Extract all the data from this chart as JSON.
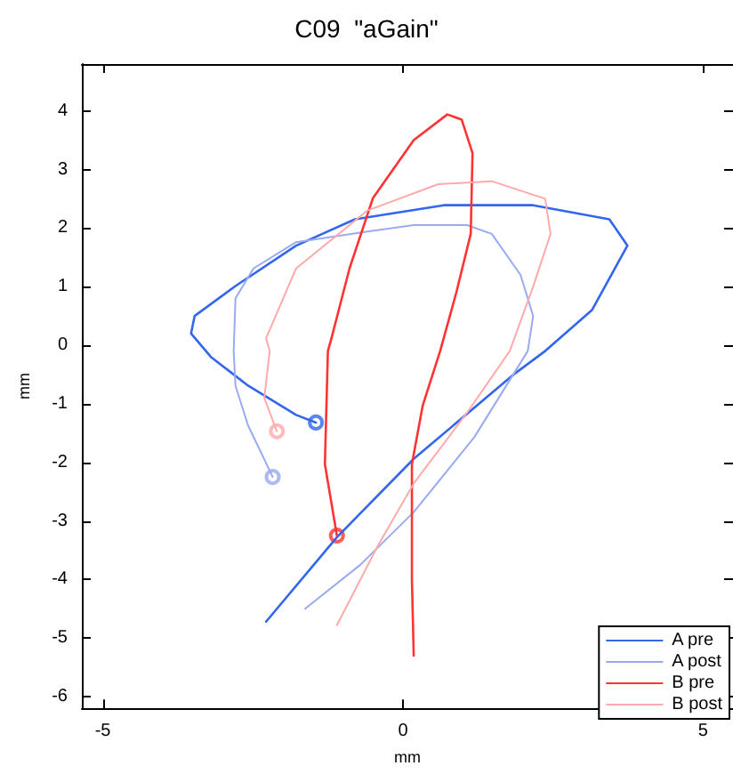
{
  "chart_data": {
    "type": "line",
    "title": "C09  \"aGain\"",
    "xlabel": "mm",
    "ylabel": "mm",
    "xlim": [
      -5.35,
      5.5
    ],
    "ylim": [
      -6.2,
      4.8
    ],
    "xticks": [
      -5,
      0,
      5
    ],
    "yticks": [
      -6,
      -5,
      -4,
      -3,
      -2,
      -1,
      0,
      1,
      2,
      3,
      4
    ],
    "grid": false,
    "legend": "bottom right",
    "series": [
      {
        "name": "A pre",
        "color": "#3366ee",
        "x": [
          -2.28,
          -1.1,
          0.18,
          1.87,
          2.37,
          3.15,
          3.74,
          3.44,
          2.17,
          0.68,
          -0.8,
          -1.78,
          -2.79,
          -3.47,
          -3.53,
          -3.2,
          -2.58,
          -1.78,
          -1.45
        ],
        "values": [
          -4.72,
          -3.28,
          -1.94,
          -0.48,
          -0.1,
          0.6,
          1.7,
          2.15,
          2.39,
          2.39,
          2.15,
          1.7,
          1.01,
          0.5,
          0.2,
          -0.2,
          -0.69,
          -1.19,
          -1.32
        ]
      },
      {
        "name": "A post",
        "color": "#99aaf0",
        "x": [
          -1.63,
          -0.71,
          0.18,
          1.19,
          2.08,
          2.17,
          1.96,
          1.48,
          1.07,
          0.18,
          -0.59,
          -1.78,
          -2.49,
          -2.79,
          -2.82,
          -2.79,
          -2.58,
          -2.17
        ],
        "values": [
          -4.5,
          -3.75,
          -2.85,
          -1.57,
          -0.1,
          0.5,
          1.2,
          1.9,
          2.05,
          2.05,
          1.94,
          1.76,
          1.31,
          0.8,
          -0.1,
          -0.69,
          -1.37,
          -2.25
        ]
      },
      {
        "name": "B pre",
        "color": "#ff3333",
        "x": [
          0.18,
          0.15,
          0.15,
          0.33,
          0.62,
          0.89,
          1.13,
          1.16,
          0.98,
          0.74,
          0.18,
          -0.5,
          -0.89,
          -1.19,
          -1.25,
          -1.3,
          -1.1
        ],
        "values": [
          -5.3,
          -4.0,
          -2.03,
          -1.03,
          -0.1,
          0.9,
          1.9,
          3.28,
          3.85,
          3.94,
          3.5,
          2.51,
          1.31,
          0.12,
          -0.1,
          -2.03,
          -3.25
        ]
      },
      {
        "name": "B post",
        "color": "#ffaaaa",
        "x": [
          -1.1,
          -0.42,
          0.18,
          1.07,
          1.78,
          2.17,
          2.46,
          2.37,
          1.48,
          0.59,
          -0.59,
          -1.78,
          -2.28,
          -2.22,
          -2.31,
          -2.1
        ],
        "values": [
          -4.78,
          -3.43,
          -2.36,
          -1.15,
          -0.1,
          1.0,
          1.9,
          2.5,
          2.8,
          2.75,
          2.3,
          1.31,
          0.12,
          -0.1,
          -0.9,
          -1.47
        ]
      },
      {
        "type": "scatter",
        "marker": "circle",
        "color": "#3366ee",
        "x": [
          -1.45
        ],
        "values": [
          -1.32
        ]
      },
      {
        "type": "scatter",
        "marker": "circle",
        "color": "#99aaf0",
        "x": [
          -2.17
        ],
        "values": [
          -2.25
        ]
      },
      {
        "type": "scatter",
        "marker": "circle",
        "color": "#ff3333",
        "x": [
          -1.1
        ],
        "values": [
          -3.25
        ]
      },
      {
        "type": "scatter",
        "marker": "circle",
        "color": "#ffaaaa",
        "x": [
          -2.1
        ],
        "values": [
          -1.47
        ]
      }
    ]
  }
}
